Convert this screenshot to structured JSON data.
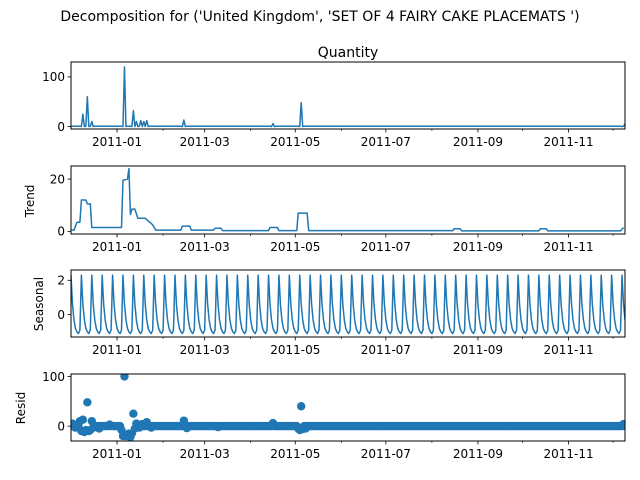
{
  "figure": {
    "suptitle": "Decomposition for ('United Kingdom', 'SET OF 4 FAIRY CAKE PLACEMATS ')",
    "line_color": "#1f77b4"
  },
  "chart_data": [
    {
      "type": "line",
      "title": "Quantity",
      "ylabel": "",
      "xlim": [
        "2010-12-01",
        "2011-12-09"
      ],
      "ylim": [
        -5,
        130
      ],
      "yticks": [
        0,
        100
      ],
      "xticks": [
        "2011-01",
        "2011-03",
        "2011-05",
        "2011-07",
        "2011-09",
        "2011-11"
      ],
      "baseline": 0.5,
      "points": [
        [
          "2010-12-01",
          0
        ],
        [
          "2010-12-08",
          0
        ],
        [
          "2010-12-09",
          25
        ],
        [
          "2010-12-10",
          0
        ],
        [
          "2010-12-12",
          60
        ],
        [
          "2010-12-13",
          0
        ],
        [
          "2010-12-15",
          10
        ],
        [
          "2010-12-16",
          0
        ],
        [
          "2011-01-05",
          0
        ],
        [
          "2011-01-06",
          120
        ],
        [
          "2011-01-07",
          0
        ],
        [
          "2011-01-11",
          0
        ],
        [
          "2011-01-12",
          32
        ],
        [
          "2011-01-13",
          0
        ],
        [
          "2011-01-14",
          10
        ],
        [
          "2011-01-15",
          0
        ],
        [
          "2011-01-17",
          12
        ],
        [
          "2011-01-18",
          0
        ],
        [
          "2011-01-19",
          10
        ],
        [
          "2011-01-20",
          0
        ],
        [
          "2011-01-21",
          12
        ],
        [
          "2011-01-22",
          0
        ],
        [
          "2011-02-14",
          0
        ],
        [
          "2011-02-15",
          13
        ],
        [
          "2011-02-16",
          0
        ],
        [
          "2011-04-15",
          0
        ],
        [
          "2011-04-16",
          6
        ],
        [
          "2011-04-17",
          0
        ],
        [
          "2011-05-04",
          0
        ],
        [
          "2011-05-05",
          48
        ],
        [
          "2011-05-06",
          0
        ],
        [
          "2011-12-07",
          0
        ],
        [
          "2011-12-09",
          5
        ]
      ]
    },
    {
      "type": "line",
      "title": "",
      "ylabel": "Trend",
      "xlim": [
        "2010-12-01",
        "2011-12-09"
      ],
      "ylim": [
        -1,
        25
      ],
      "yticks": [
        0,
        20
      ],
      "xticks": [
        "2011-01",
        "2011-03",
        "2011-05",
        "2011-07",
        "2011-09",
        "2011-11"
      ],
      "points": [
        [
          "2010-12-01",
          0.5
        ],
        [
          "2010-12-03",
          0.5
        ],
        [
          "2010-12-05",
          3.5
        ],
        [
          "2010-12-07",
          3.5
        ],
        [
          "2010-12-08",
          12
        ],
        [
          "2010-12-11",
          12
        ],
        [
          "2010-12-12",
          10.5
        ],
        [
          "2010-12-14",
          10.5
        ],
        [
          "2010-12-15",
          1.5
        ],
        [
          "2011-01-04",
          1.5
        ],
        [
          "2011-01-05",
          19.5
        ],
        [
          "2011-01-08",
          20
        ],
        [
          "2011-01-09",
          24
        ],
        [
          "2011-01-10",
          6.5
        ],
        [
          "2011-01-11",
          8.5
        ],
        [
          "2011-01-13",
          8.5
        ],
        [
          "2011-01-15",
          5
        ],
        [
          "2011-01-20",
          5
        ],
        [
          "2011-01-25",
          2.5
        ],
        [
          "2011-01-27",
          0.5
        ],
        [
          "2011-02-13",
          0.5
        ],
        [
          "2011-02-14",
          2
        ],
        [
          "2011-02-19",
          2
        ],
        [
          "2011-02-20",
          0.5
        ],
        [
          "2011-03-07",
          0.5
        ],
        [
          "2011-03-08",
          1.2
        ],
        [
          "2011-03-12",
          1.2
        ],
        [
          "2011-03-13",
          0.3
        ],
        [
          "2011-04-13",
          0.3
        ],
        [
          "2011-04-14",
          1.5
        ],
        [
          "2011-04-19",
          1.5
        ],
        [
          "2011-04-20",
          0.3
        ],
        [
          "2011-05-02",
          0.3
        ],
        [
          "2011-05-03",
          7
        ],
        [
          "2011-05-09",
          7
        ],
        [
          "2011-05-10",
          0.3
        ],
        [
          "2011-08-15",
          0.3
        ],
        [
          "2011-08-16",
          1
        ],
        [
          "2011-08-20",
          1
        ],
        [
          "2011-08-21",
          0.2
        ],
        [
          "2011-10-12",
          0.2
        ],
        [
          "2011-10-13",
          1
        ],
        [
          "2011-10-17",
          1
        ],
        [
          "2011-10-18",
          0.2
        ],
        [
          "2011-12-06",
          0.2
        ],
        [
          "2011-12-08",
          1.5
        ]
      ]
    },
    {
      "type": "line",
      "title": "",
      "ylabel": "Seasonal",
      "xlim": [
        "2010-12-01",
        "2011-12-09"
      ],
      "ylim": [
        -1.3,
        2.6
      ],
      "yticks": [
        0,
        2
      ],
      "xticks": [
        "2011-01",
        "2011-03",
        "2011-05",
        "2011-07",
        "2011-09",
        "2011-11"
      ],
      "period_days": 7,
      "weekly_pattern": [
        2.3,
        0.6,
        -0.3,
        -0.8,
        -1.0,
        -1.1,
        -0.9
      ]
    },
    {
      "type": "scatter",
      "title": "",
      "ylabel": "Resid",
      "xlim": [
        "2010-12-01",
        "2011-12-09"
      ],
      "ylim": [
        -30,
        105
      ],
      "yticks": [
        0,
        100
      ],
      "xticks": [
        "2011-01",
        "2011-03",
        "2011-05",
        "2011-07",
        "2011-09",
        "2011-11"
      ],
      "baseline": 0.0,
      "points": [
        [
          "2010-12-02",
          5
        ],
        [
          "2010-12-04",
          -3
        ],
        [
          "2010-12-07",
          10
        ],
        [
          "2010-12-08",
          -10
        ],
        [
          "2010-12-09",
          13
        ],
        [
          "2010-12-10",
          -12
        ],
        [
          "2010-12-11",
          -8
        ],
        [
          "2010-12-12",
          48
        ],
        [
          "2010-12-13",
          -10
        ],
        [
          "2010-12-14",
          -8
        ],
        [
          "2010-12-15",
          10
        ],
        [
          "2010-12-16",
          -3
        ],
        [
          "2010-12-20",
          -5
        ],
        [
          "2010-12-27",
          3
        ],
        [
          "2011-01-04",
          -8
        ],
        [
          "2011-01-05",
          -20
        ],
        [
          "2011-01-06",
          100
        ],
        [
          "2011-01-07",
          -20
        ],
        [
          "2011-01-08",
          -18
        ],
        [
          "2011-01-09",
          -15
        ],
        [
          "2011-01-10",
          -22
        ],
        [
          "2011-01-11",
          -15
        ],
        [
          "2011-01-12",
          25
        ],
        [
          "2011-01-13",
          -5
        ],
        [
          "2011-01-14",
          5
        ],
        [
          "2011-01-16",
          -3
        ],
        [
          "2011-01-18",
          4
        ],
        [
          "2011-01-21",
          8
        ],
        [
          "2011-01-24",
          -3
        ],
        [
          "2011-02-15",
          11
        ],
        [
          "2011-02-17",
          -4
        ],
        [
          "2011-03-10",
          -2
        ],
        [
          "2011-04-16",
          6
        ],
        [
          "2011-05-03",
          -5
        ],
        [
          "2011-05-04",
          -8
        ],
        [
          "2011-05-05",
          40
        ],
        [
          "2011-05-06",
          -6
        ],
        [
          "2011-05-08",
          -5
        ],
        [
          "2011-12-08",
          4
        ]
      ]
    }
  ]
}
